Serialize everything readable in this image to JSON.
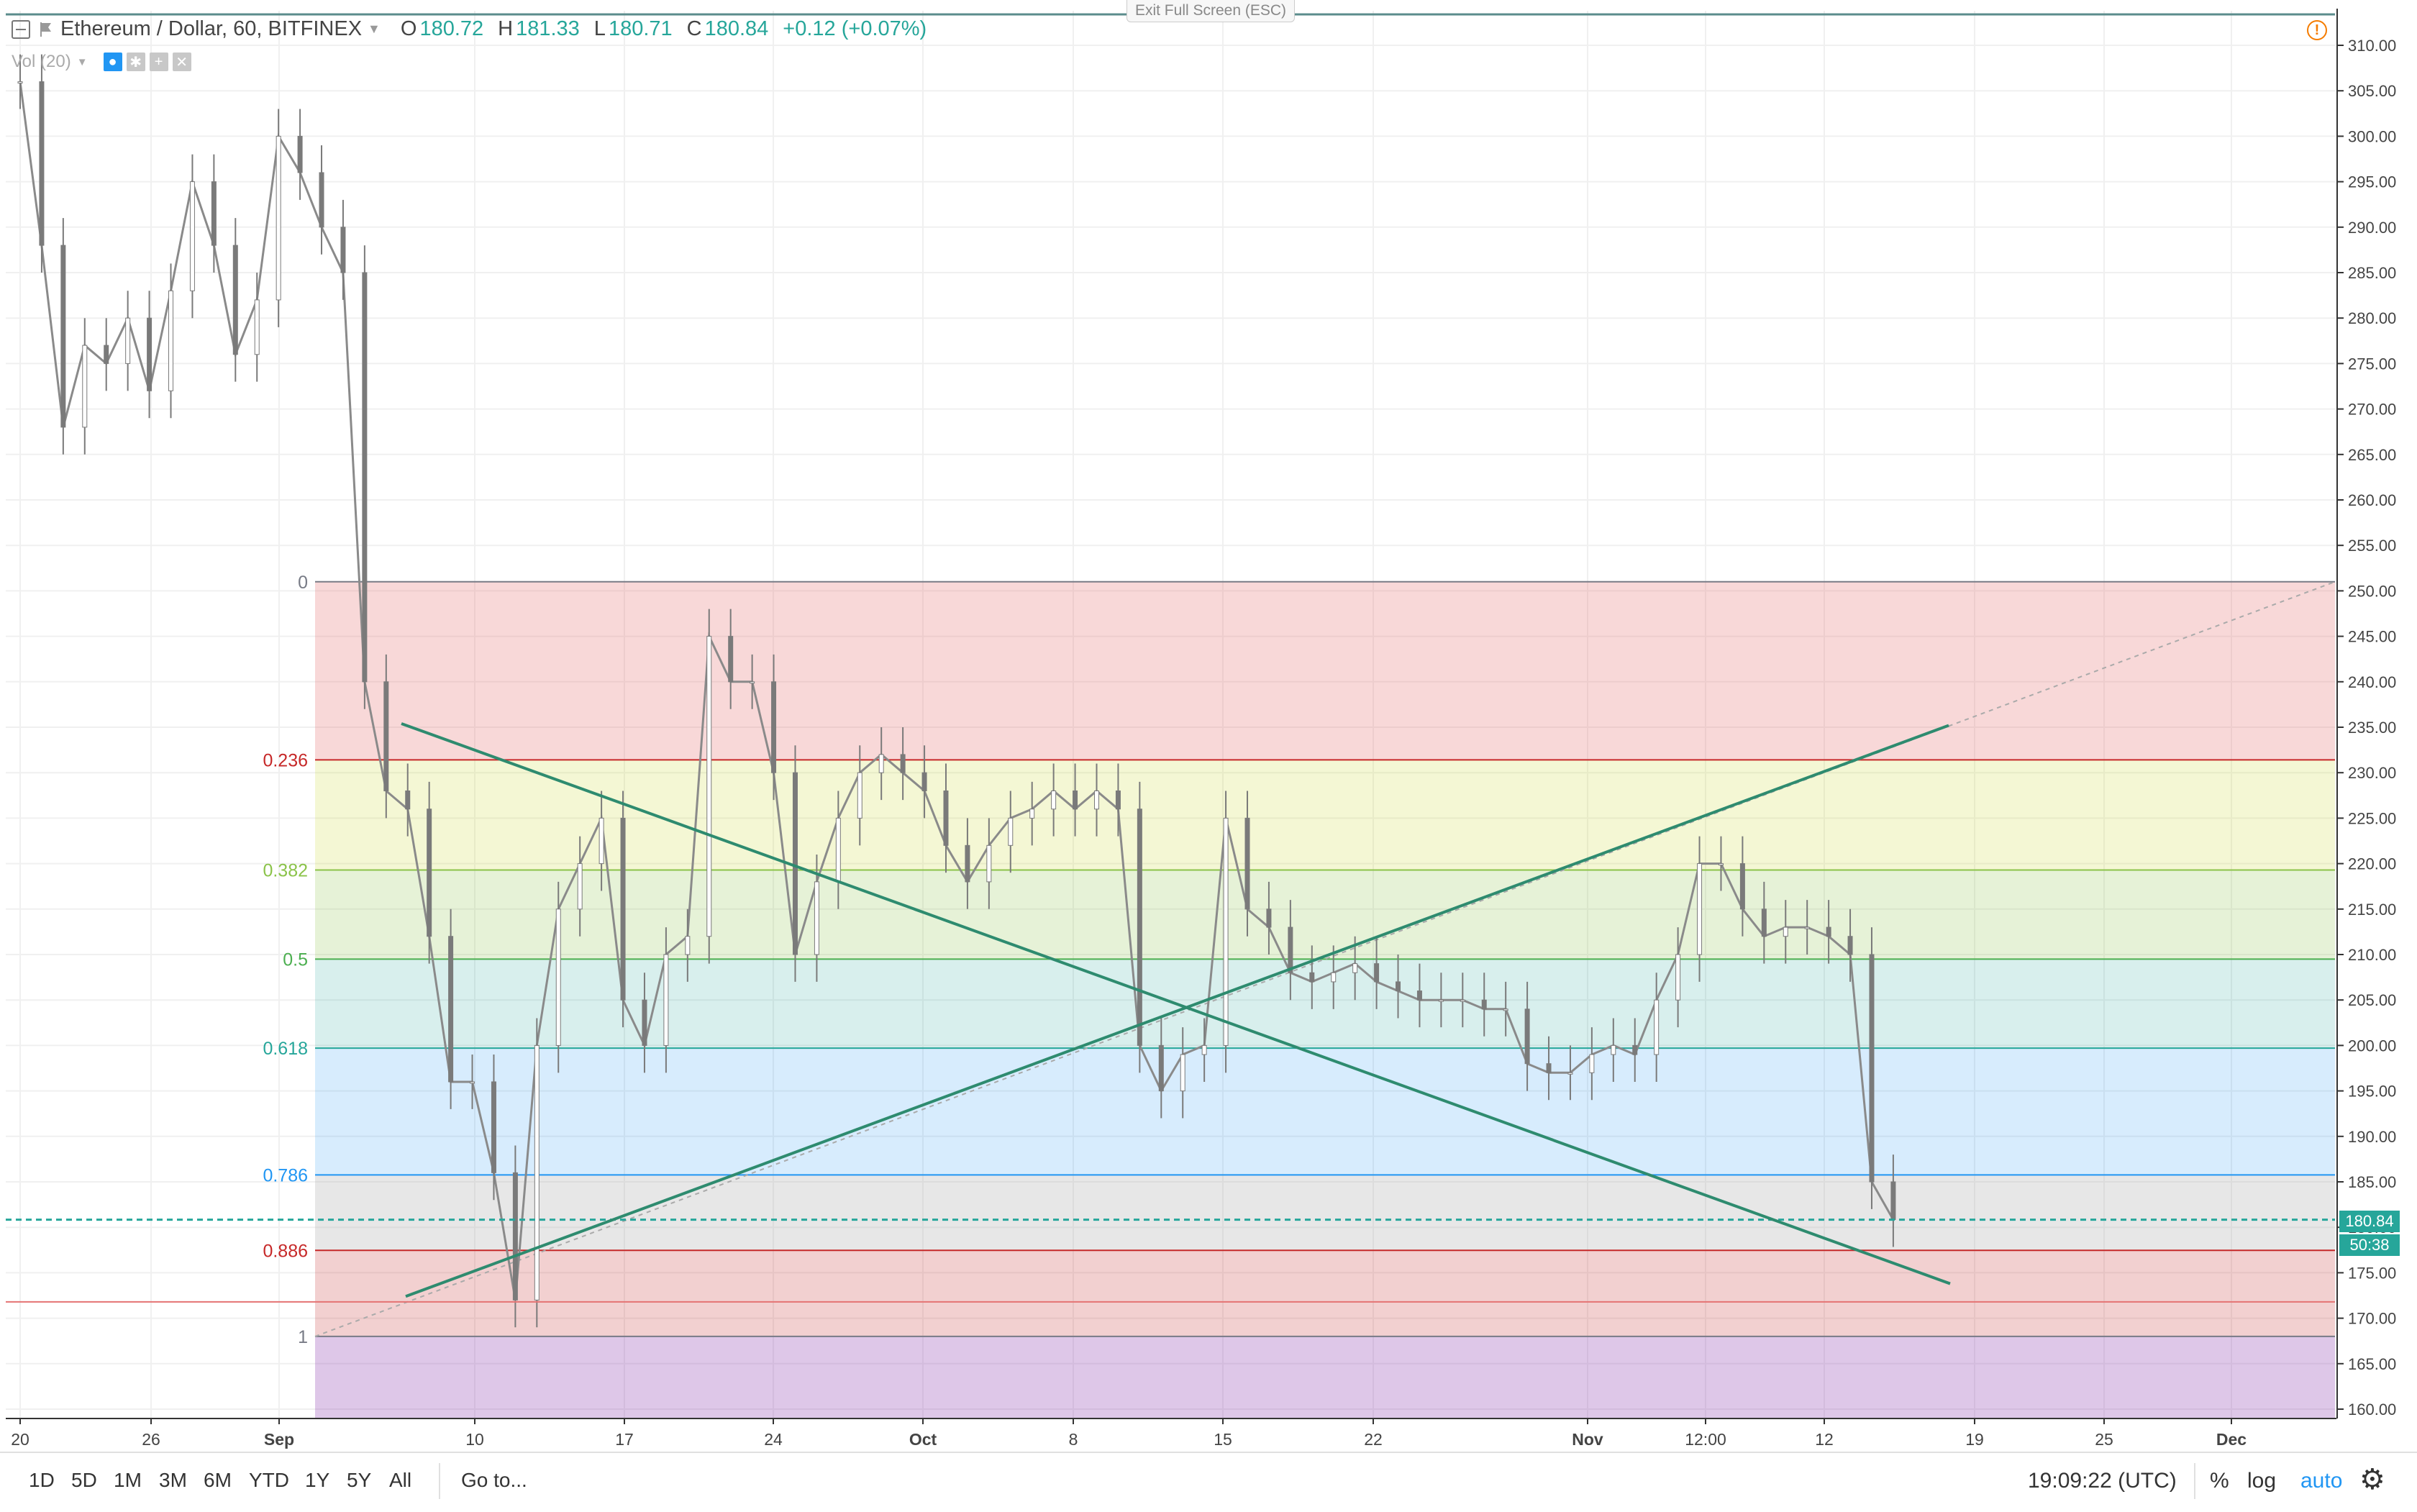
{
  "header": {
    "symbol": "Ethereum / Dollar, 60, BITFINEX",
    "ohlc": [
      {
        "label": "O",
        "value": "180.72"
      },
      {
        "label": "H",
        "value": "181.33"
      },
      {
        "label": "L",
        "value": "180.71"
      },
      {
        "label": "C",
        "value": "180.84"
      }
    ],
    "change": "+0.12 (+0.07%)",
    "volume_label": "Vol (20)"
  },
  "exit_fullscreen": "Exit Full Screen (ESC)",
  "y_axis": {
    "ticks": [
      "310.00",
      "305.00",
      "300.00",
      "295.00",
      "290.00",
      "285.00",
      "280.00",
      "275.00",
      "270.00",
      "265.00",
      "260.00",
      "255.00",
      "250.00",
      "245.00",
      "240.00",
      "235.00",
      "230.00",
      "225.00",
      "220.00",
      "215.00",
      "210.00",
      "205.00",
      "200.00",
      "195.00",
      "190.00",
      "185.00",
      "180.00",
      "175.00",
      "170.00",
      "165.00",
      "160.00"
    ],
    "last_price": "180.84",
    "countdown": "50:38"
  },
  "x_axis": {
    "ticks": [
      {
        "label": "20",
        "bold": false
      },
      {
        "label": "26",
        "bold": false
      },
      {
        "label": "Sep",
        "bold": true
      },
      {
        "label": "10",
        "bold": false
      },
      {
        "label": "17",
        "bold": false
      },
      {
        "label": "24",
        "bold": false
      },
      {
        "label": "Oct",
        "bold": true
      },
      {
        "label": "8",
        "bold": false
      },
      {
        "label": "15",
        "bold": false
      },
      {
        "label": "22",
        "bold": false
      },
      {
        "label": "Nov",
        "bold": true
      },
      {
        "label": "12:00",
        "bold": false
      },
      {
        "label": "12",
        "bold": false
      },
      {
        "label": "19",
        "bold": false
      },
      {
        "label": "25",
        "bold": false
      },
      {
        "label": "Dec",
        "bold": true
      }
    ]
  },
  "fib_levels": [
    {
      "ratio": 0,
      "label": "0",
      "color": "#787b86"
    },
    {
      "ratio": 0.236,
      "label": "0.236",
      "color": "#c62828"
    },
    {
      "ratio": 0.382,
      "label": "0.382",
      "color": "#8bc34a"
    },
    {
      "ratio": 0.5,
      "label": "0.5",
      "color": "#4caf50"
    },
    {
      "ratio": 0.618,
      "label": "0.618",
      "color": "#26a69a"
    },
    {
      "ratio": 0.786,
      "label": "0.786",
      "color": "#2196f3"
    },
    {
      "ratio": 0.886,
      "label": "0.886",
      "color": "#c62828"
    },
    {
      "ratio": 1,
      "label": "1",
      "color": "#787b86"
    }
  ],
  "chart_data": {
    "type": "candlestick",
    "title": "Ethereum / Dollar, 60, BITFINEX",
    "ylim": [
      160,
      312
    ],
    "y_scale": "linear",
    "grid": true,
    "last_price": 180.84,
    "price_series": [
      {
        "date": "2018-08-20",
        "close": 306
      },
      {
        "date": "2018-08-21",
        "close": 288
      },
      {
        "date": "2018-08-22",
        "close": 268
      },
      {
        "date": "2018-08-23",
        "close": 277
      },
      {
        "date": "2018-08-24",
        "close": 275
      },
      {
        "date": "2018-08-25",
        "close": 280
      },
      {
        "date": "2018-08-26",
        "close": 272
      },
      {
        "date": "2018-08-27",
        "close": 283
      },
      {
        "date": "2018-08-28",
        "close": 295
      },
      {
        "date": "2018-08-29",
        "close": 288
      },
      {
        "date": "2018-08-30",
        "close": 276
      },
      {
        "date": "2018-08-31",
        "close": 282
      },
      {
        "date": "2018-09-01",
        "close": 300
      },
      {
        "date": "2018-09-02",
        "close": 296
      },
      {
        "date": "2018-09-03",
        "close": 290
      },
      {
        "date": "2018-09-04",
        "close": 285
      },
      {
        "date": "2018-09-05",
        "close": 240
      },
      {
        "date": "2018-09-06",
        "close": 228
      },
      {
        "date": "2018-09-07",
        "close": 226
      },
      {
        "date": "2018-09-08",
        "close": 212
      },
      {
        "date": "2018-09-09",
        "close": 196
      },
      {
        "date": "2018-09-10",
        "close": 196
      },
      {
        "date": "2018-09-11",
        "close": 186
      },
      {
        "date": "2018-09-12",
        "close": 172
      },
      {
        "date": "2018-09-13",
        "close": 200
      },
      {
        "date": "2018-09-14",
        "close": 215
      },
      {
        "date": "2018-09-15",
        "close": 220
      },
      {
        "date": "2018-09-16",
        "close": 225
      },
      {
        "date": "2018-09-17",
        "close": 205
      },
      {
        "date": "2018-09-18",
        "close": 200
      },
      {
        "date": "2018-09-19",
        "close": 210
      },
      {
        "date": "2018-09-20",
        "close": 212
      },
      {
        "date": "2018-09-21",
        "close": 245
      },
      {
        "date": "2018-09-22",
        "close": 240
      },
      {
        "date": "2018-09-23",
        "close": 240
      },
      {
        "date": "2018-09-24",
        "close": 230
      },
      {
        "date": "2018-09-25",
        "close": 210
      },
      {
        "date": "2018-09-26",
        "close": 218
      },
      {
        "date": "2018-09-27",
        "close": 225
      },
      {
        "date": "2018-09-28",
        "close": 230
      },
      {
        "date": "2018-09-29",
        "close": 232
      },
      {
        "date": "2018-09-30",
        "close": 230
      },
      {
        "date": "2018-10-01",
        "close": 228
      },
      {
        "date": "2018-10-02",
        "close": 222
      },
      {
        "date": "2018-10-03",
        "close": 218
      },
      {
        "date": "2018-10-04",
        "close": 222
      },
      {
        "date": "2018-10-05",
        "close": 225
      },
      {
        "date": "2018-10-06",
        "close": 226
      },
      {
        "date": "2018-10-07",
        "close": 228
      },
      {
        "date": "2018-10-08",
        "close": 226
      },
      {
        "date": "2018-10-09",
        "close": 228
      },
      {
        "date": "2018-10-10",
        "close": 226
      },
      {
        "date": "2018-10-11",
        "close": 200
      },
      {
        "date": "2018-10-12",
        "close": 195
      },
      {
        "date": "2018-10-13",
        "close": 199
      },
      {
        "date": "2018-10-14",
        "close": 200
      },
      {
        "date": "2018-10-15",
        "close": 225
      },
      {
        "date": "2018-10-16",
        "close": 215
      },
      {
        "date": "2018-10-17",
        "close": 213
      },
      {
        "date": "2018-10-18",
        "close": 208
      },
      {
        "date": "2018-10-19",
        "close": 207
      },
      {
        "date": "2018-10-20",
        "close": 208
      },
      {
        "date": "2018-10-21",
        "close": 209
      },
      {
        "date": "2018-10-22",
        "close": 207
      },
      {
        "date": "2018-10-23",
        "close": 206
      },
      {
        "date": "2018-10-24",
        "close": 205
      },
      {
        "date": "2018-10-25",
        "close": 205
      },
      {
        "date": "2018-10-26",
        "close": 205
      },
      {
        "date": "2018-10-27",
        "close": 204
      },
      {
        "date": "2018-10-28",
        "close": 204
      },
      {
        "date": "2018-10-29",
        "close": 198
      },
      {
        "date": "2018-10-30",
        "close": 197
      },
      {
        "date": "2018-10-31",
        "close": 197
      },
      {
        "date": "2018-11-01",
        "close": 199
      },
      {
        "date": "2018-11-02",
        "close": 200
      },
      {
        "date": "2018-11-03",
        "close": 199
      },
      {
        "date": "2018-11-04",
        "close": 205
      },
      {
        "date": "2018-11-05",
        "close": 210
      },
      {
        "date": "2018-11-06",
        "close": 220
      },
      {
        "date": "2018-11-07",
        "close": 220
      },
      {
        "date": "2018-11-08",
        "close": 215
      },
      {
        "date": "2018-11-09",
        "close": 212
      },
      {
        "date": "2018-11-10",
        "close": 213
      },
      {
        "date": "2018-11-11",
        "close": 213
      },
      {
        "date": "2018-11-12",
        "close": 212
      },
      {
        "date": "2018-11-13",
        "close": 210
      },
      {
        "date": "2018-11-14",
        "close": 185
      },
      {
        "date": "2018-11-15",
        "close": 180.84
      }
    ]
  }
}
